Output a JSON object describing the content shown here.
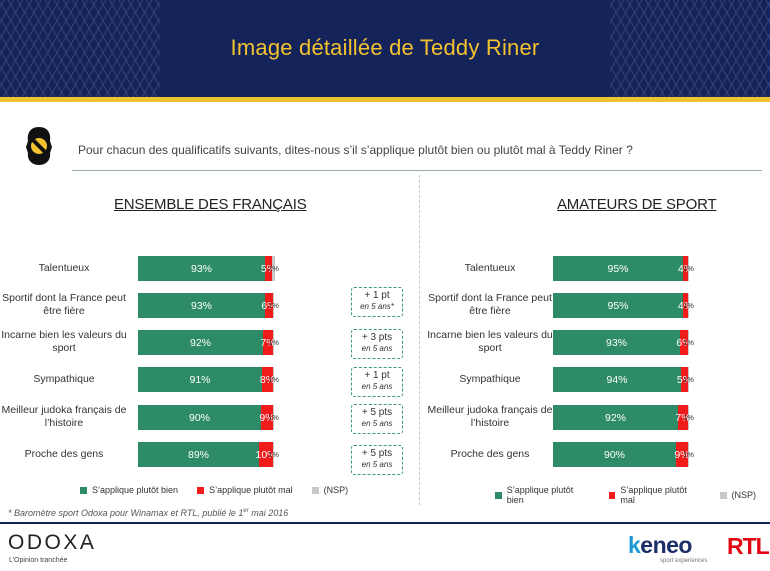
{
  "header": {
    "title": "Image détaillée de Teddy Riner"
  },
  "question": "Pour chacun des qualificatifs suivants, dites-nous s’il s’applique plutôt bien ou plutôt mal à Teddy Riner ?",
  "colors": {
    "good": "#2e8b68",
    "bad": "#f01c1c",
    "nsp": "#c8c8c8",
    "header_bg": "#14235a",
    "gold": "#f3c230"
  },
  "chart_data": [
    {
      "type": "bar",
      "stacked": true,
      "orientation": "horizontal",
      "title": "ENSEMBLE DES FRANÇAIS",
      "categories": [
        "Talentueux",
        "Sportif dont la France peut être fière",
        "Incarne bien les valeurs du sport",
        "Sympathique",
        "Meilleur judoka français de l’histoire",
        "Proche des gens"
      ],
      "series": [
        {
          "name": "S’applique plutôt bien",
          "values": [
            93,
            93,
            92,
            91,
            90,
            89
          ]
        },
        {
          "name": "S’applique plutôt mal",
          "values": [
            5,
            6,
            7,
            8,
            9,
            10
          ]
        },
        {
          "name": "(NSP)",
          "values": [
            2,
            1,
            1,
            1,
            1,
            1
          ]
        }
      ],
      "evolution": [
        {
          "value": "+ 1 pt",
          "sub": "en 5 ans*"
        },
        {
          "value": "+ 3 pts",
          "sub": "en 5 ans"
        },
        {
          "value": "+ 1 pt",
          "sub": "en 5 ans"
        },
        {
          "value": "+ 5 pts",
          "sub": "en 5 ans"
        },
        {
          "value": "+ 5 pts",
          "sub": "en 5 ans"
        }
      ]
    },
    {
      "type": "bar",
      "stacked": true,
      "orientation": "horizontal",
      "title": "AMATEURS DE SPORT",
      "categories": [
        "Talentueux",
        "Sportif dont la France peut être fière",
        "Incarne bien les valeurs du sport",
        "Sympathique",
        "Meilleur judoka français de l’histoire",
        "Proche des gens"
      ],
      "series": [
        {
          "name": "S’applique plutôt bien",
          "values": [
            95,
            95,
            93,
            94,
            92,
            90
          ]
        },
        {
          "name": "S’applique plutôt mal",
          "values": [
            4,
            4,
            6,
            5,
            7,
            9
          ]
        },
        {
          "name": "(NSP)",
          "values": [
            1,
            1,
            1,
            1,
            1,
            1
          ]
        }
      ]
    }
  ],
  "footnote": {
    "text": "* Baromètre sport Odoxa pour Winamax et RTL, publié le 1",
    "sup": "er",
    "tail": " mai 2016"
  },
  "footer": {
    "odoxa": "ODOXA",
    "odoxa_tagline": "L’Opinion tranchée",
    "keneo_k": "k",
    "keneo_rest": "eneo",
    "keneo_sub": "sport experiences",
    "rtl": "RTL"
  }
}
